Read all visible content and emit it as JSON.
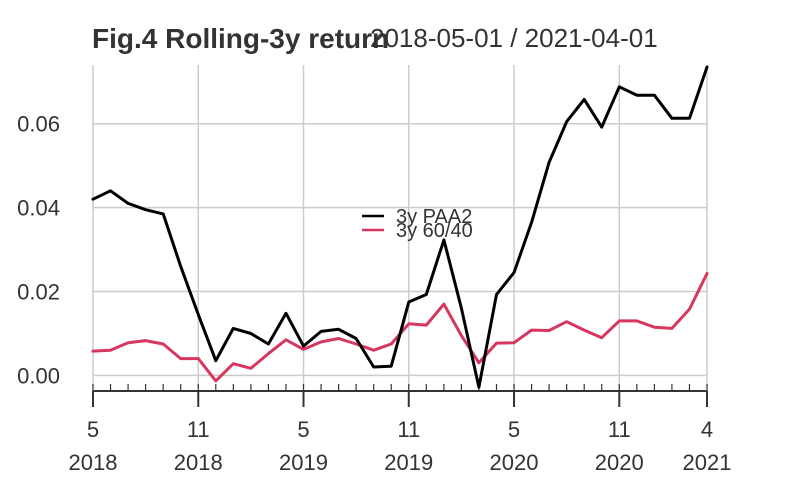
{
  "chart_data": {
    "type": "line",
    "title": "Fig.4 Rolling-3y return",
    "date_range": "2018-05-01 / 2021-04-01",
    "xlabel": "",
    "ylabel": "",
    "x": [
      "2018-05",
      "2018-06",
      "2018-07",
      "2018-08",
      "2018-09",
      "2018-10",
      "2018-11",
      "2018-12",
      "2019-01",
      "2019-02",
      "2019-03",
      "2019-04",
      "2019-05",
      "2019-06",
      "2019-07",
      "2019-08",
      "2019-09",
      "2019-10",
      "2019-11",
      "2019-12",
      "2020-01",
      "2020-02",
      "2020-03",
      "2020-04",
      "2020-05",
      "2020-06",
      "2020-07",
      "2020-08",
      "2020-09",
      "2020-10",
      "2020-11",
      "2020-12",
      "2021-01",
      "2021-02",
      "2021-03",
      "2021-04"
    ],
    "ylim": [
      -0.003,
      0.074
    ],
    "yticks": [
      0.0,
      0.02,
      0.04,
      0.06
    ],
    "ytick_labels": [
      "0.00",
      "0.02",
      "0.04",
      "0.06"
    ],
    "xtick_labels": [
      {
        "month": "5",
        "year": "2018",
        "x": "2018-05"
      },
      {
        "month": "11",
        "year": "2018",
        "x": "2018-11"
      },
      {
        "month": "5",
        "year": "2019",
        "x": "2019-05"
      },
      {
        "month": "11",
        "year": "2019",
        "x": "2019-11"
      },
      {
        "month": "5",
        "year": "2020",
        "x": "2020-05"
      },
      {
        "month": "11",
        "year": "2020",
        "x": "2020-11"
      },
      {
        "month": "4",
        "year": "2021",
        "x": "2021-04"
      }
    ],
    "grid": true,
    "legend_position": "center",
    "series": [
      {
        "name": "3y PAA2",
        "color": "#000000",
        "values": [
          0.042,
          0.044,
          0.041,
          0.0395,
          0.0385,
          0.026,
          0.0145,
          0.0035,
          0.0112,
          0.01,
          0.0075,
          0.0148,
          0.007,
          0.0105,
          0.011,
          0.0088,
          0.002,
          0.0022,
          0.0175,
          0.0193,
          0.0323,
          0.016,
          -0.0028,
          0.0193,
          0.0245,
          0.0365,
          0.0508,
          0.0605,
          0.0658,
          0.0592,
          0.0688,
          0.0668,
          0.0668,
          0.0613,
          0.0613,
          0.0735
        ]
      },
      {
        "name": "3y 60/40",
        "color": "#d6375e",
        "values": [
          0.0058,
          0.006,
          0.0078,
          0.0083,
          0.0075,
          0.004,
          0.004,
          -0.0013,
          0.0028,
          0.0017,
          0.0052,
          0.0085,
          0.0062,
          0.008,
          0.0088,
          0.0075,
          0.006,
          0.0075,
          0.0123,
          0.012,
          0.017,
          0.0095,
          0.003,
          0.0077,
          0.0078,
          0.0108,
          0.0107,
          0.0128,
          0.0108,
          0.009,
          0.013,
          0.013,
          0.0115,
          0.0112,
          0.0158,
          0.0243
        ]
      }
    ]
  }
}
